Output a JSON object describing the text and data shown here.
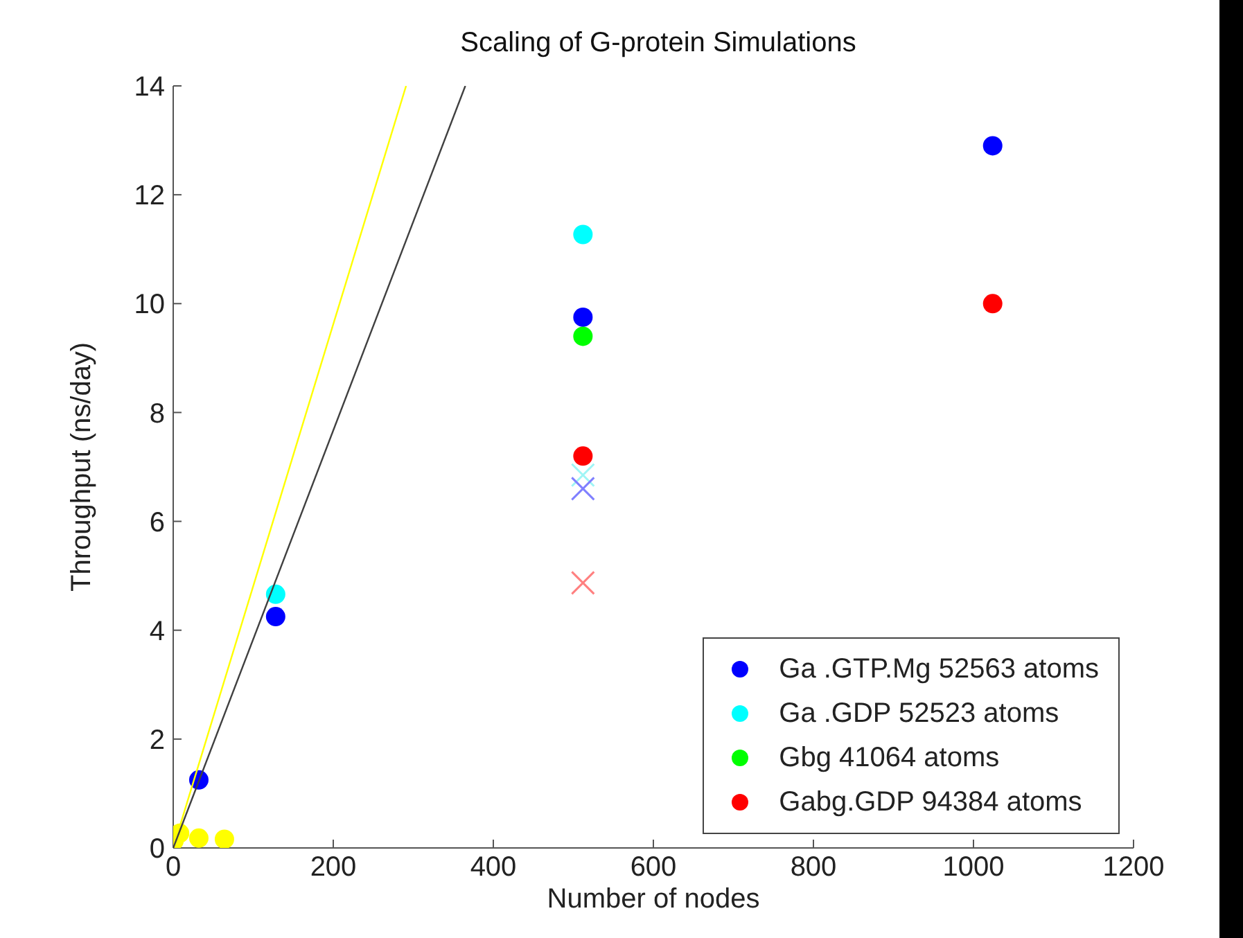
{
  "chart_data": {
    "type": "scatter",
    "title": "Scaling of G-protein Simulations",
    "xlabel": "Number of nodes",
    "ylabel": "Throughput (ns/day)",
    "xlim": [
      0,
      1200
    ],
    "xticks": [
      0,
      200,
      400,
      600,
      800,
      1000,
      1200
    ],
    "ylim": [
      0,
      14
    ],
    "yticks": [
      0,
      2,
      4,
      6,
      8,
      10,
      12,
      14
    ],
    "legend": "bottom right",
    "marker": "circle",
    "series": [
      {
        "name": "Ga .GTP.Mg 52563 atoms",
        "color": "#0000ff",
        "x": [
          32,
          128,
          512,
          1024
        ],
        "values": [
          1.25,
          4.25,
          9.75,
          12.9
        ]
      },
      {
        "name": "Ga .GDP 52523 atoms",
        "color": "#00ffff",
        "x": [
          128,
          512
        ],
        "values": [
          4.66,
          11.27
        ]
      },
      {
        "name": "Gbg 41064 atoms",
        "color": "#00ff00",
        "x": [
          512
        ],
        "values": [
          9.4
        ]
      },
      {
        "name": "Gabg.GDP 94384 atoms",
        "color": "#ff0000",
        "x": [
          512,
          1024
        ],
        "values": [
          7.2,
          10.0
        ]
      },
      {
        "color": "#9ff5f5",
        "marker": "cross",
        "x": [
          512
        ],
        "values": [
          6.85
        ]
      },
      {
        "color": "#8080ff",
        "marker": "cross",
        "x": [
          512
        ],
        "values": [
          6.6
        ]
      },
      {
        "color": "#ff8080",
        "marker": "cross",
        "x": [
          512
        ],
        "values": [
          4.87
        ]
      },
      {
        "color": "#ffff00",
        "x": [
          1,
          8,
          32,
          64
        ],
        "values": [
          0.13,
          0.27,
          0.18,
          0.16
        ]
      },
      {
        "type": "line",
        "color": "#ffff00",
        "marker": "none",
        "x": [
          0,
          291
        ],
        "values": [
          0,
          14
        ]
      },
      {
        "type": "line",
        "color": "#404040",
        "marker": "none",
        "x": [
          0,
          365
        ],
        "values": [
          0,
          14
        ]
      }
    ]
  }
}
